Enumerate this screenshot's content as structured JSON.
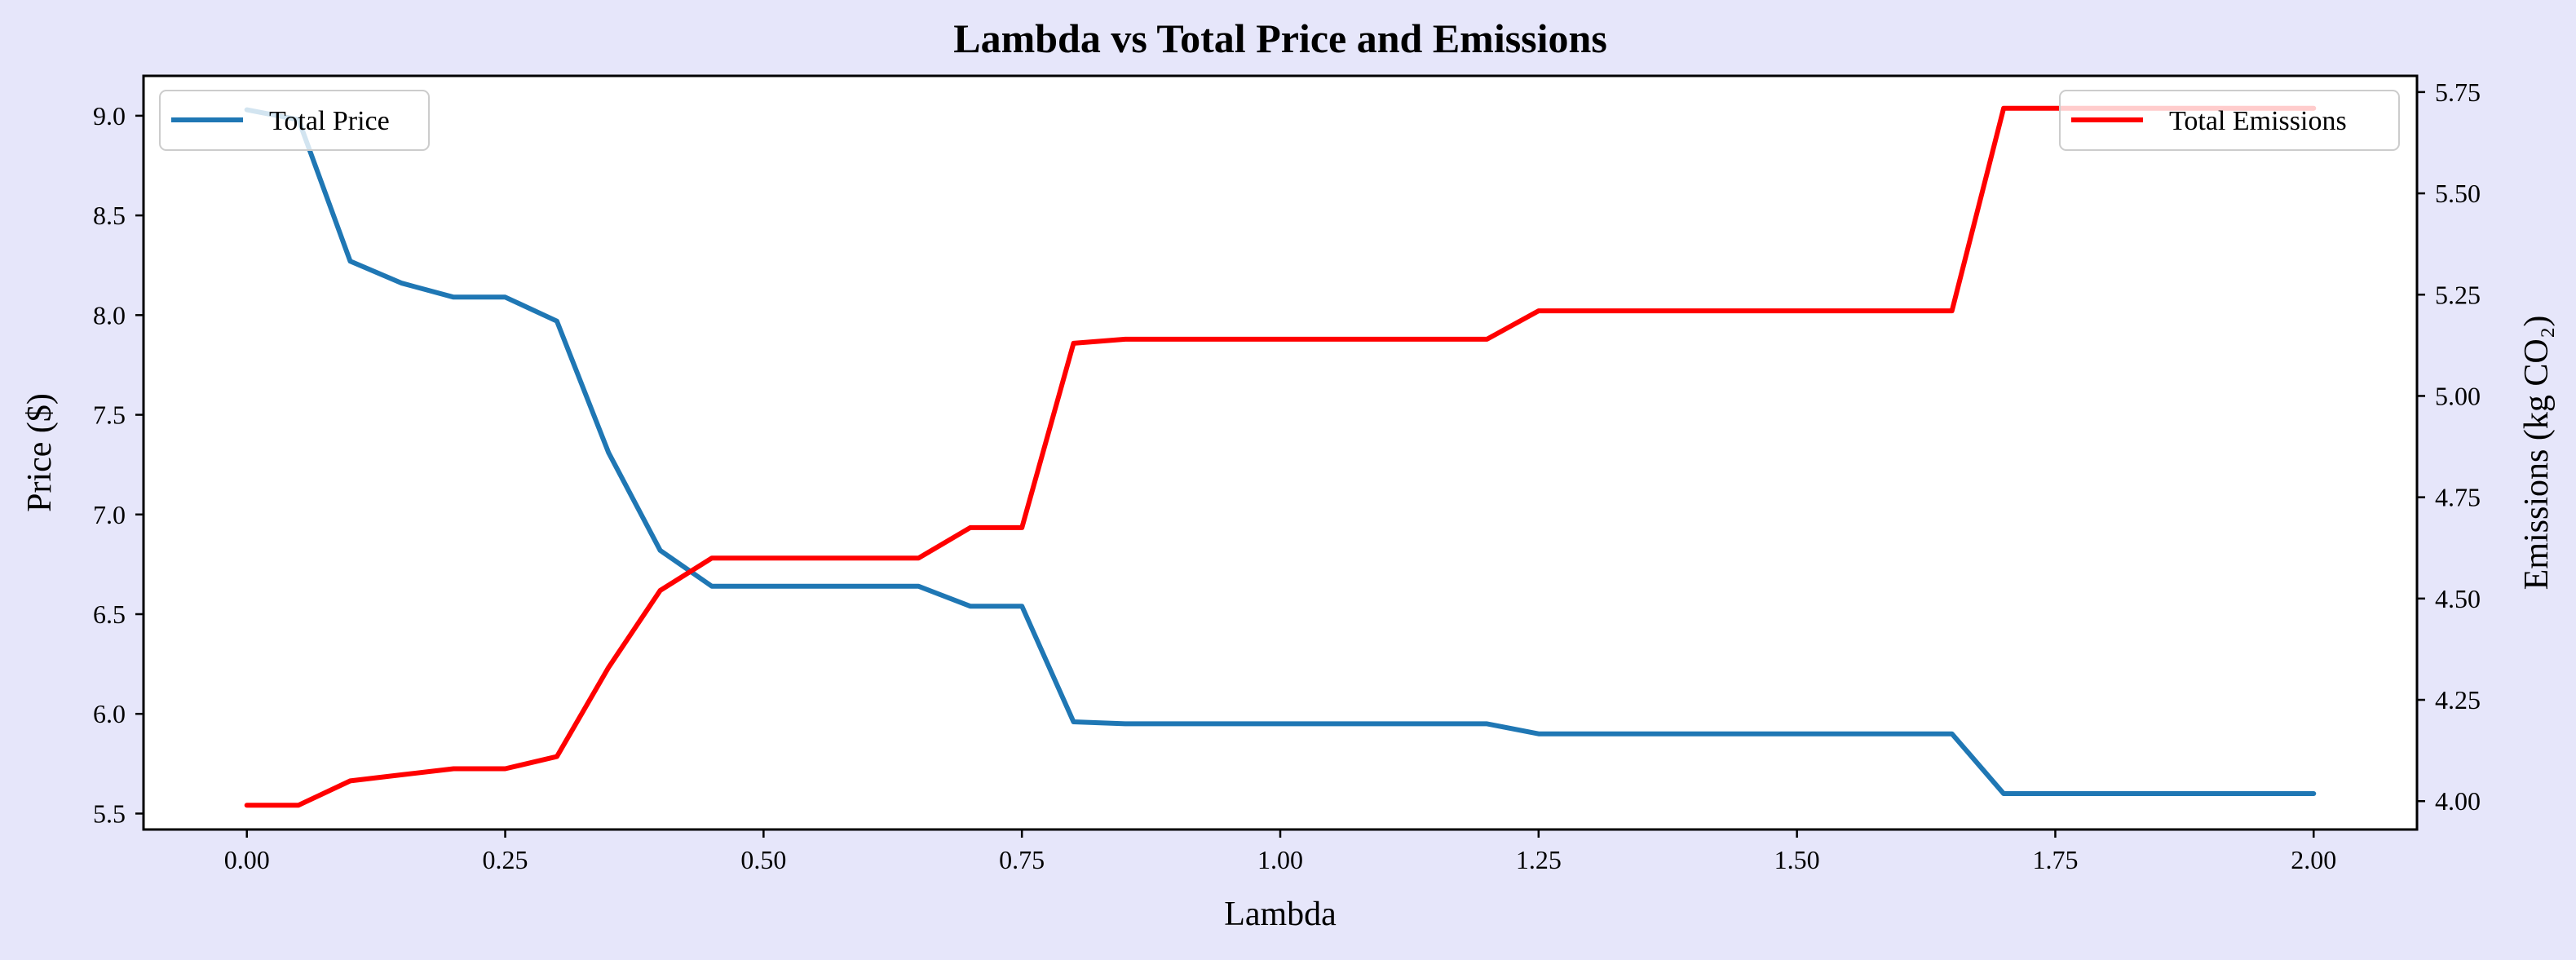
{
  "chart_data": {
    "type": "line",
    "title": "Lambda vs Total Price and Emissions",
    "xlabel": "Lambda",
    "ylabel_left": "Price ($)",
    "ylabel_right": "Emissions (kg CO₂)",
    "xlim": [
      -0.1,
      2.1
    ],
    "ylim_left": [
      5.42,
      9.2
    ],
    "ylim_right": [
      3.93,
      5.79
    ],
    "x_ticks": [
      0.0,
      0.25,
      0.5,
      0.75,
      1.0,
      1.25,
      1.5,
      1.75,
      2.0
    ],
    "x_tick_labels": [
      "0.00",
      "0.25",
      "0.50",
      "0.75",
      "1.00",
      "1.25",
      "1.50",
      "1.75",
      "2.00"
    ],
    "y_left_ticks": [
      5.5,
      6.0,
      6.5,
      7.0,
      7.5,
      8.0,
      8.5,
      9.0
    ],
    "y_left_tick_labels": [
      "5.5",
      "6.0",
      "6.5",
      "7.0",
      "7.5",
      "8.0",
      "8.5",
      "9.0"
    ],
    "y_right_ticks": [
      4.0,
      4.25,
      4.5,
      4.75,
      5.0,
      5.25,
      5.5,
      5.75
    ],
    "y_right_tick_labels": [
      "4.00",
      "4.25",
      "4.50",
      "4.75",
      "5.00",
      "5.25",
      "5.50",
      "5.75"
    ],
    "grid": false,
    "x": [
      0.0,
      0.05,
      0.1,
      0.15,
      0.2,
      0.25,
      0.3,
      0.35,
      0.4,
      0.45,
      0.5,
      0.55,
      0.6,
      0.65,
      0.7,
      0.75,
      0.8,
      0.85,
      0.9,
      0.95,
      1.0,
      1.05,
      1.1,
      1.15,
      1.2,
      1.25,
      1.3,
      1.35,
      1.4,
      1.45,
      1.5,
      1.55,
      1.6,
      1.65,
      1.7,
      1.75,
      1.8,
      1.85,
      1.9,
      1.95,
      2.0
    ],
    "series": [
      {
        "name": "Total Price",
        "axis": "left",
        "color": "#1f77b4",
        "legend_position": "upper-left",
        "values": [
          9.03,
          8.98,
          8.27,
          8.16,
          8.09,
          8.09,
          7.97,
          7.31,
          6.82,
          6.64,
          6.64,
          6.64,
          6.64,
          6.64,
          6.54,
          6.54,
          5.96,
          5.95,
          5.95,
          5.95,
          5.95,
          5.95,
          5.95,
          5.95,
          5.95,
          5.9,
          5.9,
          5.9,
          5.9,
          5.9,
          5.9,
          5.9,
          5.9,
          5.9,
          5.6,
          5.6,
          5.6,
          5.6,
          5.6,
          5.6,
          5.6
        ]
      },
      {
        "name": "Total Emissions",
        "axis": "right",
        "color": "#ff0000",
        "legend_position": "upper-right",
        "values": [
          3.99,
          3.99,
          4.05,
          4.065,
          4.08,
          4.08,
          4.11,
          4.33,
          4.52,
          4.6,
          4.6,
          4.6,
          4.6,
          4.6,
          4.675,
          4.675,
          5.13,
          5.14,
          5.14,
          5.14,
          5.14,
          5.14,
          5.14,
          5.14,
          5.14,
          5.21,
          5.21,
          5.21,
          5.21,
          5.21,
          5.21,
          5.21,
          5.21,
          5.21,
          5.71,
          5.71,
          5.71,
          5.71,
          5.71,
          5.71,
          5.71
        ]
      }
    ]
  }
}
